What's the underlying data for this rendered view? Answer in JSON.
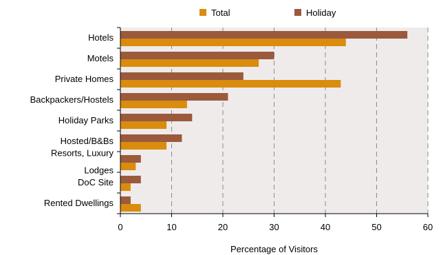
{
  "chart_data": {
    "type": "bar",
    "orientation": "horizontal",
    "categories": [
      "Hotels",
      "Motels",
      "Private Homes",
      "Backpackers/Hostels",
      "Holiday Parks",
      "Hosted/B&Bs",
      [
        "Resorts, Luxury",
        "Lodges"
      ],
      "DoC Site",
      "Rented Dwellings"
    ],
    "series": [
      {
        "name": "Holiday",
        "color": "#9b5a3c",
        "values": [
          56,
          30,
          24,
          21,
          14,
          12,
          4,
          4,
          2
        ]
      },
      {
        "name": "Total",
        "color": "#d98c0e",
        "values": [
          44,
          27,
          43,
          13,
          9,
          9,
          3,
          2,
          4
        ]
      }
    ],
    "legend": [
      {
        "name": "Total",
        "color": "#d98c0e"
      },
      {
        "name": "Holiday",
        "color": "#9b5a3c"
      }
    ],
    "legend_position": "top",
    "xlabel": "Percentage of Visitors",
    "ylabel": "",
    "xlim": [
      0,
      60
    ],
    "xticks": [
      0,
      10,
      20,
      30,
      40,
      50,
      60
    ],
    "grid": "vertical-dashed",
    "plot_background": "#efebeb"
  }
}
